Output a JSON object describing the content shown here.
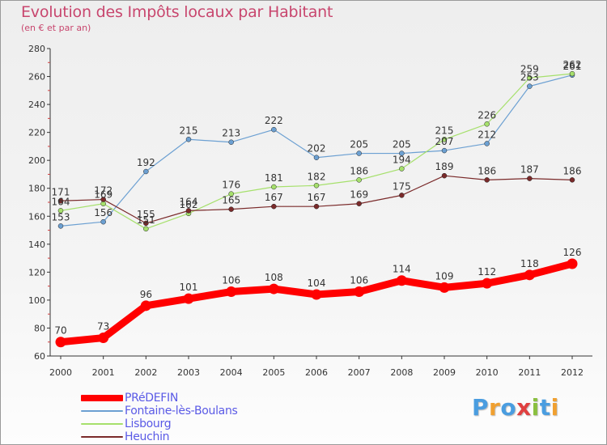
{
  "title": "Evolution des Impôts locaux par Habitant",
  "subtitle": "(en € et par an)",
  "logo": {
    "text": "Proxiti",
    "colors": [
      "#4a9de0",
      "#f0a030",
      "#4a9de0",
      "#e04040",
      "#8ac040",
      "#4a9de0",
      "#f0a030"
    ]
  },
  "chart_data": {
    "type": "line",
    "x": [
      "2000",
      "2001",
      "2002",
      "2003",
      "2004",
      "2005",
      "2006",
      "2007",
      "2008",
      "2009",
      "2010",
      "2011",
      "2012"
    ],
    "ylim": [
      60,
      280
    ],
    "yticks": [
      60,
      80,
      100,
      120,
      140,
      160,
      180,
      200,
      220,
      240,
      260,
      280
    ],
    "grid": false,
    "legend": "bottom-left",
    "series": [
      {
        "name": "PRéDEFIN",
        "color": "#ff0000",
        "values": [
          70,
          73,
          96,
          101,
          106,
          108,
          104,
          106,
          114,
          109,
          112,
          118,
          126
        ],
        "labels": [
          "70",
          "73",
          "96",
          "101",
          "106",
          "108",
          "104",
          "106",
          "114",
          "109",
          "112",
          "118",
          "126"
        ]
      },
      {
        "name": "Fontaine-lès-Boulans",
        "color": "#6ca0d2",
        "values": [
          153,
          156,
          192,
          215,
          213,
          222,
          202,
          205,
          205,
          207,
          212,
          253,
          261
        ],
        "labels": [
          "153",
          "156",
          "192",
          "215",
          "213",
          "222",
          "202",
          "205",
          "205",
          "207",
          "212",
          "253",
          "261"
        ]
      },
      {
        "name": "Lisbourg",
        "color": "#a6e06c",
        "values": [
          164,
          169,
          151,
          162,
          176,
          181,
          182,
          186,
          194,
          215,
          226,
          259,
          262
        ],
        "labels": [
          "164",
          "169",
          "151",
          "162",
          "176",
          "181",
          "182",
          "186",
          "194",
          "215",
          "226",
          "259",
          "262"
        ]
      },
      {
        "name": "Heuchin",
        "color": "#7a2a2a",
        "values": [
          171,
          172,
          155,
          164,
          165,
          167,
          167,
          169,
          175,
          189,
          186,
          187,
          186
        ],
        "labels": [
          "171",
          "172",
          "155",
          "164",
          "165",
          "167",
          "167",
          "169",
          "175",
          "189",
          "186",
          "187",
          "186"
        ]
      }
    ]
  }
}
